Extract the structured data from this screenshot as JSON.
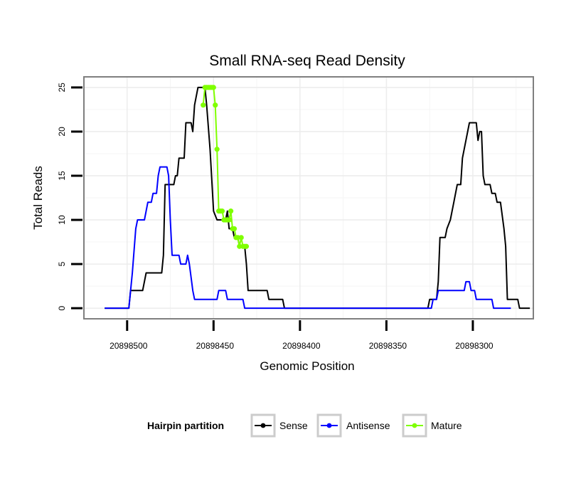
{
  "chart_data": {
    "type": "line",
    "title": "Small RNA-seq Read Density",
    "xlabel": "Genomic Position",
    "ylabel": "Total Reads",
    "x_reversed": true,
    "xlim": [
      20898525,
      20898265
    ],
    "ylim": [
      -1.2,
      26.2
    ],
    "x_ticks": [
      20898500,
      20898450,
      20898400,
      20898350,
      20898300
    ],
    "x_tick_labels": [
      "20898500",
      "20898450",
      "20898400",
      "20898350",
      "20898300"
    ],
    "y_ticks": [
      0,
      5,
      10,
      15,
      20,
      25
    ],
    "y_tick_labels": [
      "0",
      "5",
      "10",
      "15",
      "20",
      "25"
    ],
    "grid": true,
    "legend": {
      "title": "Hairpin partition",
      "position": "bottom",
      "entries": [
        "Sense",
        "Antisense",
        "Mature"
      ]
    },
    "series": [
      {
        "name": "Sense",
        "color": "#000000",
        "points": [
          [
            20898513,
            0
          ],
          [
            20898499,
            0
          ],
          [
            20898498,
            2
          ],
          [
            20898491,
            2
          ],
          [
            20898489,
            4
          ],
          [
            20898480,
            4
          ],
          [
            20898479,
            6
          ],
          [
            20898478,
            14
          ],
          [
            20898473,
            14
          ],
          [
            20898472,
            15
          ],
          [
            20898471,
            15
          ],
          [
            20898470,
            17
          ],
          [
            20898467,
            17
          ],
          [
            20898466,
            21
          ],
          [
            20898463,
            21
          ],
          [
            20898462,
            20
          ],
          [
            20898461,
            23
          ],
          [
            20898459,
            25
          ],
          [
            20898455,
            25
          ],
          [
            20898454,
            23
          ],
          [
            20898452,
            18
          ],
          [
            20898450,
            11
          ],
          [
            20898448,
            10
          ],
          [
            20898443,
            10
          ],
          [
            20898442,
            11
          ],
          [
            20898441,
            9
          ],
          [
            20898439,
            9
          ],
          [
            20898438,
            8
          ],
          [
            20898436,
            8
          ],
          [
            20898435,
            7
          ],
          [
            20898432,
            7
          ],
          [
            20898431,
            5
          ],
          [
            20898430,
            2
          ],
          [
            20898419,
            2
          ],
          [
            20898418,
            1
          ],
          [
            20898410,
            1
          ],
          [
            20898409,
            0
          ],
          [
            20898326,
            0
          ],
          [
            20898325,
            1
          ],
          [
            20898321,
            1
          ],
          [
            20898320,
            3
          ],
          [
            20898319,
            8
          ],
          [
            20898316,
            8
          ],
          [
            20898315,
            9
          ],
          [
            20898313,
            10
          ],
          [
            20898311,
            12
          ],
          [
            20898309,
            14
          ],
          [
            20898307,
            14
          ],
          [
            20898306,
            17
          ],
          [
            20898304,
            19
          ],
          [
            20898302,
            21
          ],
          [
            20898298,
            21
          ],
          [
            20898297,
            19
          ],
          [
            20898296,
            20
          ],
          [
            20898295,
            20
          ],
          [
            20898294,
            15
          ],
          [
            20898293,
            14
          ],
          [
            20898290,
            14
          ],
          [
            20898289,
            13
          ],
          [
            20898287,
            13
          ],
          [
            20898286,
            12
          ],
          [
            20898284,
            12
          ],
          [
            20898282,
            9
          ],
          [
            20898281,
            7
          ],
          [
            20898280,
            1
          ],
          [
            20898274,
            1
          ],
          [
            20898273,
            0
          ],
          [
            20898271,
            0
          ],
          [
            20898267,
            0
          ]
        ]
      },
      {
        "name": "Antisense",
        "color": "#0000ff",
        "points": [
          [
            20898513,
            0
          ],
          [
            20898501,
            0
          ],
          [
            20898499,
            0
          ],
          [
            20898497,
            4
          ],
          [
            20898495,
            9
          ],
          [
            20898494,
            10
          ],
          [
            20898490,
            10
          ],
          [
            20898488,
            12
          ],
          [
            20898486,
            12
          ],
          [
            20898485,
            13
          ],
          [
            20898483,
            13
          ],
          [
            20898482,
            15
          ],
          [
            20898481,
            16
          ],
          [
            20898477,
            16
          ],
          [
            20898476,
            15
          ],
          [
            20898475,
            10
          ],
          [
            20898474,
            6
          ],
          [
            20898470,
            6
          ],
          [
            20898469,
            5
          ],
          [
            20898466,
            5
          ],
          [
            20898465,
            6
          ],
          [
            20898464,
            5
          ],
          [
            20898462,
            2
          ],
          [
            20898461,
            1
          ],
          [
            20898448,
            1
          ],
          [
            20898447,
            2
          ],
          [
            20898443,
            2
          ],
          [
            20898442,
            1
          ],
          [
            20898434,
            1
          ],
          [
            20898433,
            1
          ],
          [
            20898432,
            0
          ],
          [
            20898326,
            0
          ],
          [
            20898324,
            0
          ],
          [
            20898323,
            1
          ],
          [
            20898321,
            1
          ],
          [
            20898320,
            2
          ],
          [
            20898305,
            2
          ],
          [
            20898304,
            3
          ],
          [
            20898302,
            3
          ],
          [
            20898301,
            2
          ],
          [
            20898299,
            2
          ],
          [
            20898298,
            1
          ],
          [
            20898289,
            1
          ],
          [
            20898288,
            0
          ],
          [
            20898280,
            0
          ],
          [
            20898278,
            0
          ]
        ]
      },
      {
        "name": "Mature",
        "color": "#7fff00",
        "points": [
          [
            20898456,
            23
          ],
          [
            20898455,
            25
          ],
          [
            20898454,
            25
          ],
          [
            20898453,
            25
          ],
          [
            20898452,
            25
          ],
          [
            20898451,
            25
          ],
          [
            20898450,
            25
          ],
          [
            20898449,
            23
          ],
          [
            20898448,
            18
          ],
          [
            20898447,
            11
          ],
          [
            20898446,
            11
          ],
          [
            20898445,
            11
          ],
          [
            20898444,
            10
          ],
          [
            20898443,
            10
          ],
          [
            20898442,
            10
          ],
          [
            20898441,
            10
          ],
          [
            20898440,
            11
          ],
          [
            20898439,
            9
          ],
          [
            20898438,
            9
          ],
          [
            20898437,
            8
          ],
          [
            20898436,
            8
          ],
          [
            20898435,
            7
          ],
          [
            20898434,
            8
          ],
          [
            20898433,
            7
          ],
          [
            20898432,
            7
          ],
          [
            20898431,
            7
          ]
        ]
      }
    ]
  }
}
